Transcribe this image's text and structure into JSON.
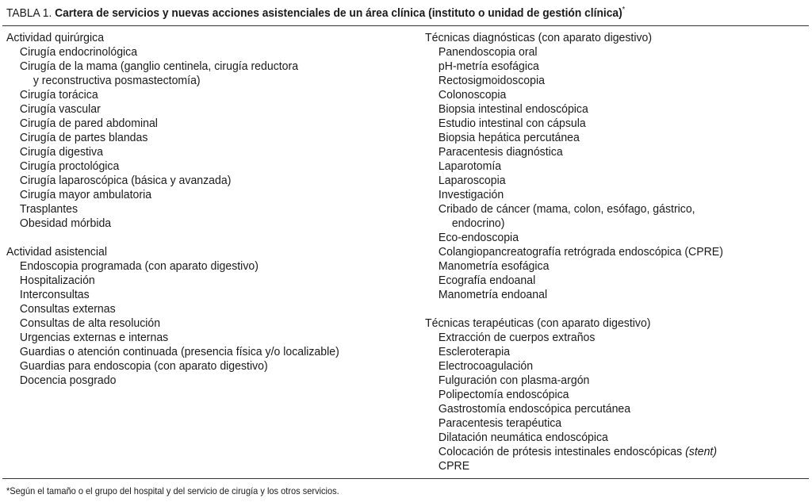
{
  "title": {
    "label": "TABLA 1.",
    "text": "Cartera de servicios y nuevas acciones asistenciales de un área clínica (instituto o unidad de gestión clínica)",
    "mark": "*"
  },
  "left": [
    {
      "heading": "Actividad quirúrgica",
      "items": [
        [
          "Cirugía endocrinológica"
        ],
        [
          "Cirugía de la mama (ganglio centinela, cirugía reductora",
          "y reconstructiva posmastectomía)"
        ],
        [
          "Cirugía torácica"
        ],
        [
          "Cirugía vascular"
        ],
        [
          "Cirugía de pared abdominal"
        ],
        [
          "Cirugía de partes blandas"
        ],
        [
          "Cirugía digestiva"
        ],
        [
          "Cirugía proctológica"
        ],
        [
          "Cirugía laparoscópica (básica y avanzada)"
        ],
        [
          "Cirugía mayor ambulatoria"
        ],
        [
          "Trasplantes"
        ],
        [
          "Obesidad mórbida"
        ]
      ]
    },
    {
      "heading": "Actividad asistencial",
      "items": [
        [
          "Endoscopia programada (con aparato digestivo)"
        ],
        [
          "Hospitalización"
        ],
        [
          "Interconsultas"
        ],
        [
          "Consultas externas"
        ],
        [
          "Consultas de alta resolución"
        ],
        [
          "Urgencias externas e internas"
        ],
        [
          "Guardias o atención continuada (presencia física y/o localizable)"
        ],
        [
          "Guardias para endoscopia (con aparato digestivo)"
        ],
        [
          "Docencia posgrado"
        ]
      ]
    }
  ],
  "right": [
    {
      "heading": "Técnicas diagnósticas (con aparato digestivo)",
      "items": [
        [
          "Panendoscopia oral"
        ],
        [
          "pH-metría esofágica"
        ],
        [
          "Rectosigmoidoscopia"
        ],
        [
          "Colonoscopia"
        ],
        [
          "Biopsia intestinal endoscópica"
        ],
        [
          "Estudio intestinal con cápsula"
        ],
        [
          "Biopsia hepática percutánea"
        ],
        [
          "Paracentesis diagnóstica"
        ],
        [
          "Laparotomía"
        ],
        [
          "Laparoscopia"
        ],
        [
          "Investigación"
        ],
        [
          "Cribado de cáncer (mama, colon, esófago, gástrico,",
          "endocrino)"
        ],
        [
          "Eco-endoscopia"
        ],
        [
          "Colangiopancreatografía retrógrada endoscópica (CPRE)"
        ],
        [
          "Manometría esofágica"
        ],
        [
          "Ecografía endoanal"
        ],
        [
          "Manometría endoanal"
        ]
      ]
    },
    {
      "heading": "Técnicas terapéuticas (con aparato digestivo)",
      "items": [
        [
          "Extracción de cuerpos extraños"
        ],
        [
          "Escleroterapia"
        ],
        [
          "Electrocoagulación"
        ],
        [
          "Fulguración con plasma-argón"
        ],
        [
          "Polipectomía endoscópica"
        ],
        [
          "Gastrostomía endoscópica percutánea"
        ],
        [
          "Paracentesis terapéutica"
        ],
        [
          "Dilatación neumática endoscópica"
        ],
        [
          "Colocación de prótesis intestinales endoscópicas |stent"
        ],
        [
          "CPRE"
        ]
      ]
    }
  ],
  "footnote": "*Según el tamaño o el grupo del hospital y del servicio de cirugía y los otros servicios."
}
